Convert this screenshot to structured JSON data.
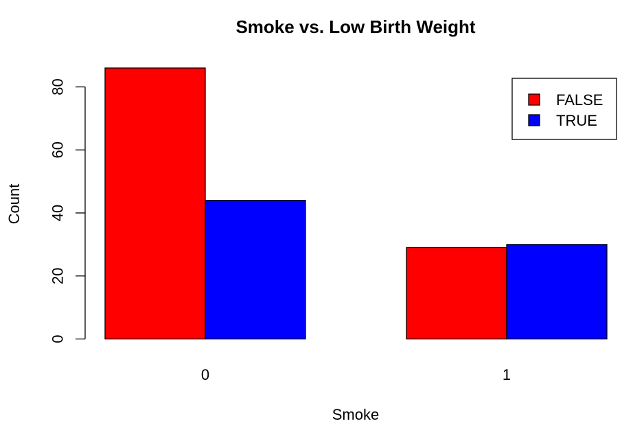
{
  "chart_data": {
    "type": "bar",
    "layout": "grouped",
    "title": "Smoke vs. Low Birth Weight",
    "xlabel": "Smoke",
    "ylabel": "Count",
    "categories": [
      "0",
      "1"
    ],
    "series": [
      {
        "name": "FALSE",
        "color": "#ff0000",
        "values": [
          86,
          29
        ]
      },
      {
        "name": "TRUE",
        "color": "#0000ff",
        "values": [
          44,
          30
        ]
      }
    ],
    "ylim": [
      0,
      86
    ],
    "yticks": [
      0,
      20,
      40,
      60,
      80
    ],
    "legend": {
      "position": "top-right",
      "entries": [
        "FALSE",
        "TRUE"
      ]
    },
    "grid": false
  }
}
